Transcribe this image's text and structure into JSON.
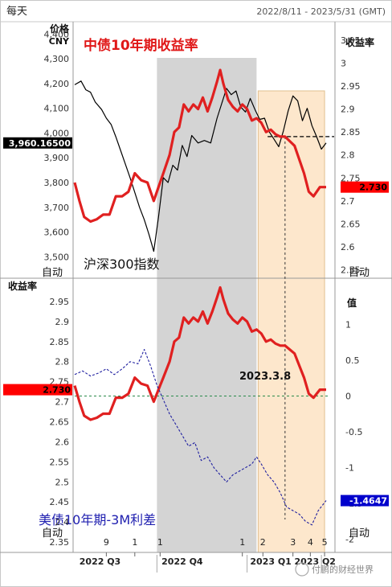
{
  "header": {
    "frequency": "每天",
    "date_range": "2022/8/11 - 2023/5/31 (GMT)"
  },
  "colors": {
    "china_yield": "#e02020",
    "csi300": "#000000",
    "spread": "#2020a0",
    "title_red": "#e01818",
    "title_blue": "#2020b0",
    "shade_gray": "#d4d4d4",
    "shade_orange": "#fde7cc",
    "price_box": "#000000",
    "yield_box": "#ff0000",
    "spread_box": "#0000cc"
  },
  "chart_data": [
    {
      "type": "line",
      "title": "中债10年期收益率",
      "annotation": "沪深300指数",
      "left_axis": {
        "label": "价格",
        "unit": "CNY",
        "ylim": [
          3420,
          4440
        ],
        "ticks": [
          "4,400",
          "4,300",
          "4,200",
          "4,100",
          "4,000",
          "3,900",
          "3,800",
          "3,700",
          "3,600",
          "3,500"
        ]
      },
      "right_axis": {
        "label": "收益率",
        "ylim": [
          2.535,
          3.085
        ],
        "ticks": [
          "3.05",
          "3",
          "2.95",
          "2.9",
          "2.85",
          "2.8",
          "2.75",
          "2.7",
          "2.65",
          "2.6",
          "2.55"
        ]
      },
      "last_price_label": "3,960.16500",
      "last_yield_label": "2.730",
      "dashed_level": 2.84,
      "auto_left": "自动",
      "auto_right": "自动",
      "series": [
        {
          "name": "沪深300指数",
          "axis": "left",
          "points": [
            [
              0,
              4195
            ],
            [
              0.4,
              4210
            ],
            [
              0.7,
              4175
            ],
            [
              1,
              4165
            ],
            [
              1.3,
              4125
            ],
            [
              1.7,
              4095
            ],
            [
              2,
              4060
            ],
            [
              2.3,
              4035
            ],
            [
              2.6,
              3985
            ],
            [
              2.9,
              3930
            ],
            [
              3.2,
              3875
            ],
            [
              3.5,
              3820
            ],
            [
              3.8,
              3760
            ],
            [
              4.1,
              3700
            ],
            [
              4.4,
              3650
            ],
            [
              4.7,
              3590
            ],
            [
              5,
              3522
            ],
            [
              5.3,
              3660
            ],
            [
              5.6,
              3820
            ],
            [
              5.9,
              3800
            ],
            [
              6.2,
              3870
            ],
            [
              6.5,
              3850
            ],
            [
              6.8,
              3950
            ],
            [
              7.1,
              3905
            ],
            [
              7.4,
              3990
            ],
            [
              7.8,
              3960
            ],
            [
              8.2,
              3970
            ],
            [
              8.6,
              3960
            ],
            [
              9,
              4060
            ],
            [
              9.3,
              4120
            ],
            [
              9.6,
              4180
            ],
            [
              9.9,
              4155
            ],
            [
              10.2,
              4170
            ],
            [
              10.5,
              4105
            ],
            [
              10.8,
              4085
            ],
            [
              11.1,
              4140
            ],
            [
              11.4,
              4095
            ],
            [
              11.7,
              4055
            ],
            [
              12,
              4060
            ],
            [
              12.3,
              4005
            ],
            [
              12.6,
              3975
            ],
            [
              12.9,
              3945
            ],
            [
              13.2,
              4010
            ],
            [
              13.5,
              4090
            ],
            [
              13.8,
              4150
            ],
            [
              14.1,
              4130
            ],
            [
              14.4,
              4050
            ],
            [
              14.7,
              4100
            ],
            [
              15,
              4030
            ],
            [
              15.3,
              3985
            ],
            [
              15.6,
              3935
            ],
            [
              15.9,
              3960
            ]
          ]
        },
        {
          "name": "中债10年期收益率",
          "axis": "right",
          "points": [
            [
              0,
              2.74
            ],
            [
              0.3,
              2.7
            ],
            [
              0.6,
              2.665
            ],
            [
              1,
              2.655
            ],
            [
              1.4,
              2.66
            ],
            [
              1.8,
              2.67
            ],
            [
              2.2,
              2.67
            ],
            [
              2.6,
              2.71
            ],
            [
              3,
              2.71
            ],
            [
              3.4,
              2.72
            ],
            [
              3.8,
              2.76
            ],
            [
              4.2,
              2.745
            ],
            [
              4.6,
              2.74
            ],
            [
              5,
              2.7
            ],
            [
              5.3,
              2.73
            ],
            [
              5.6,
              2.76
            ],
            [
              6,
              2.8
            ],
            [
              6.3,
              2.85
            ],
            [
              6.6,
              2.86
            ],
            [
              6.9,
              2.91
            ],
            [
              7.2,
              2.895
            ],
            [
              7.5,
              2.91
            ],
            [
              7.8,
              2.9
            ],
            [
              8.1,
              2.925
            ],
            [
              8.4,
              2.895
            ],
            [
              8.7,
              2.925
            ],
            [
              9,
              2.96
            ],
            [
              9.2,
              2.985
            ],
            [
              9.4,
              2.955
            ],
            [
              9.7,
              2.92
            ],
            [
              10,
              2.905
            ],
            [
              10.3,
              2.895
            ],
            [
              10.6,
              2.91
            ],
            [
              10.9,
              2.9
            ],
            [
              11.2,
              2.875
            ],
            [
              11.5,
              2.88
            ],
            [
              11.8,
              2.87
            ],
            [
              12.1,
              2.85
            ],
            [
              12.4,
              2.855
            ],
            [
              12.7,
              2.845
            ],
            [
              13,
              2.84
            ],
            [
              13.3,
              2.84
            ],
            [
              13.6,
              2.83
            ],
            [
              13.9,
              2.82
            ],
            [
              14.2,
              2.79
            ],
            [
              14.5,
              2.76
            ],
            [
              14.8,
              2.72
            ],
            [
              15.1,
              2.71
            ],
            [
              15.5,
              2.73
            ],
            [
              15.9,
              2.73
            ]
          ]
        }
      ]
    },
    {
      "type": "line",
      "title": "美债10年期-3M利差",
      "annotation": "2023.3.8",
      "left_axis": {
        "label": "收益率",
        "ylim": [
          2.33,
          3.0
        ],
        "ticks": [
          "2.95",
          "2.9",
          "2.85",
          "2.8",
          "2.75",
          "2.7",
          "2.65",
          "2.6",
          "2.55",
          "2.5",
          "2.45",
          "2.4",
          "2.35"
        ]
      },
      "right_axis": {
        "label": "值",
        "ylim": [
          -2.15,
          1.6
        ],
        "ticks": [
          "1",
          "0.5",
          "0",
          "-0.5",
          "-1",
          "-1.5",
          "-2"
        ]
      },
      "last_yield_label": "2.730",
      "last_spread_label": "-1.4647",
      "zero_level": 0,
      "event_label": "2023.3.8",
      "auto_left": "自动",
      "auto_right": "自动",
      "series": [
        {
          "name": "中债10年期收益率",
          "axis": "left",
          "points": [
            [
              0,
              2.74
            ],
            [
              0.3,
              2.7
            ],
            [
              0.6,
              2.665
            ],
            [
              1,
              2.655
            ],
            [
              1.4,
              2.66
            ],
            [
              1.8,
              2.67
            ],
            [
              2.2,
              2.67
            ],
            [
              2.6,
              2.71
            ],
            [
              3,
              2.71
            ],
            [
              3.4,
              2.72
            ],
            [
              3.8,
              2.76
            ],
            [
              4.2,
              2.745
            ],
            [
              4.6,
              2.74
            ],
            [
              5,
              2.7
            ],
            [
              5.3,
              2.73
            ],
            [
              5.6,
              2.76
            ],
            [
              6,
              2.8
            ],
            [
              6.3,
              2.85
            ],
            [
              6.6,
              2.86
            ],
            [
              6.9,
              2.91
            ],
            [
              7.2,
              2.895
            ],
            [
              7.5,
              2.91
            ],
            [
              7.8,
              2.9
            ],
            [
              8.1,
              2.925
            ],
            [
              8.4,
              2.895
            ],
            [
              8.7,
              2.925
            ],
            [
              9,
              2.96
            ],
            [
              9.2,
              2.985
            ],
            [
              9.4,
              2.955
            ],
            [
              9.7,
              2.92
            ],
            [
              10,
              2.905
            ],
            [
              10.3,
              2.895
            ],
            [
              10.6,
              2.91
            ],
            [
              10.9,
              2.9
            ],
            [
              11.2,
              2.875
            ],
            [
              11.5,
              2.88
            ],
            [
              11.8,
              2.87
            ],
            [
              12.1,
              2.85
            ],
            [
              12.4,
              2.855
            ],
            [
              12.7,
              2.845
            ],
            [
              13,
              2.84
            ],
            [
              13.3,
              2.84
            ],
            [
              13.6,
              2.83
            ],
            [
              13.9,
              2.82
            ],
            [
              14.2,
              2.79
            ],
            [
              14.5,
              2.76
            ],
            [
              14.8,
              2.72
            ],
            [
              15.1,
              2.71
            ],
            [
              15.5,
              2.73
            ],
            [
              15.9,
              2.73
            ]
          ]
        },
        {
          "name": "美债10年期-3M利差",
          "axis": "right",
          "points": [
            [
              0,
              0.3
            ],
            [
              0.5,
              0.35
            ],
            [
              1,
              0.28
            ],
            [
              1.5,
              0.32
            ],
            [
              2,
              0.38
            ],
            [
              2.5,
              0.3
            ],
            [
              3,
              0.38
            ],
            [
              3.5,
              0.48
            ],
            [
              4,
              0.45
            ],
            [
              4.4,
              0.65
            ],
            [
              4.8,
              0.42
            ],
            [
              5.2,
              0.15
            ],
            [
              5.6,
              -0.05
            ],
            [
              6,
              -0.25
            ],
            [
              6.4,
              -0.4
            ],
            [
              6.8,
              -0.55
            ],
            [
              7.2,
              -0.7
            ],
            [
              7.6,
              -0.65
            ],
            [
              8,
              -0.9
            ],
            [
              8.4,
              -0.85
            ],
            [
              8.8,
              -1.0
            ],
            [
              9.2,
              -1.1
            ],
            [
              9.6,
              -1.2
            ],
            [
              10,
              -1.1
            ],
            [
              10.4,
              -1.05
            ],
            [
              10.8,
              -1.0
            ],
            [
              11.2,
              -0.95
            ],
            [
              11.5,
              -0.85
            ],
            [
              11.8,
              -0.95
            ],
            [
              12.2,
              -1.1
            ],
            [
              12.6,
              -1.2
            ],
            [
              13,
              -1.35
            ],
            [
              13.4,
              -1.55
            ],
            [
              13.8,
              -1.6
            ],
            [
              14.2,
              -1.65
            ],
            [
              14.6,
              -1.75
            ],
            [
              15,
              -1.8
            ],
            [
              15.4,
              -1.6
            ],
            [
              15.9,
              -1.46
            ]
          ]
        }
      ]
    }
  ],
  "x_axis": {
    "month_ticks": [
      "9",
      "1",
      "1",
      "1",
      "2",
      "3",
      "4",
      "5"
    ],
    "quarters": [
      "2022 Q3",
      "2022 Q4",
      "2023 Q1",
      "2023 Q2"
    ]
  },
  "watermark": "付鹏的财经世界"
}
